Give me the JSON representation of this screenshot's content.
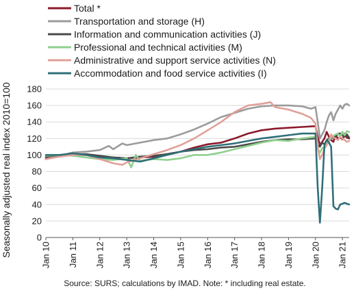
{
  "chart_data": {
    "type": "line",
    "ylabel": "Seasonally adjusted real index 2010=100",
    "xlabel": "",
    "ylim": [
      0,
      180
    ],
    "yticks": [
      0,
      20,
      40,
      60,
      80,
      100,
      120,
      140,
      160,
      180
    ],
    "x_ticks": [
      "Jan 10",
      "Jan 11",
      "Jan 12",
      "Jan 13",
      "Jan 14",
      "Jan 15",
      "Jan 16",
      "Jan 17",
      "Jan 18",
      "Jan 19",
      "Jan 20",
      "Jan 21"
    ],
    "x_range": [
      "Jan 10",
      "Apr 21"
    ],
    "grid": "horizontal",
    "legend_position": "top",
    "note": "Source:  SURS; calculations by IMAD. Note: * including real estate.",
    "series": [
      {
        "name": "Total *",
        "color": "#8b1a2b",
        "points": [
          [
            0,
            96
          ],
          [
            6,
            100
          ],
          [
            12,
            101
          ],
          [
            18,
            100
          ],
          [
            24,
            98
          ],
          [
            30,
            97
          ],
          [
            36,
            96
          ],
          [
            42,
            97
          ],
          [
            48,
            98
          ],
          [
            54,
            101
          ],
          [
            60,
            104
          ],
          [
            66,
            109
          ],
          [
            72,
            113
          ],
          [
            78,
            115
          ],
          [
            84,
            120
          ],
          [
            90,
            126
          ],
          [
            96,
            130
          ],
          [
            102,
            132
          ],
          [
            108,
            133
          ],
          [
            114,
            134
          ],
          [
            120,
            135
          ],
          [
            121,
            122
          ],
          [
            122,
            112
          ],
          [
            123,
            116
          ],
          [
            124,
            120
          ],
          [
            125,
            128
          ],
          [
            126,
            122
          ],
          [
            127,
            118
          ],
          [
            128,
            116
          ],
          [
            129,
            124
          ],
          [
            130,
            120
          ],
          [
            131,
            121
          ],
          [
            132,
            119
          ],
          [
            133,
            126
          ],
          [
            134,
            121
          ],
          [
            135,
            120
          ]
        ]
      },
      {
        "name": "Transportation and storage (H)",
        "color": "#9b9b9b",
        "points": [
          [
            0,
            95
          ],
          [
            6,
            99
          ],
          [
            12,
            103
          ],
          [
            18,
            104
          ],
          [
            24,
            106
          ],
          [
            28,
            111
          ],
          [
            30,
            107
          ],
          [
            34,
            114
          ],
          [
            36,
            112
          ],
          [
            42,
            115
          ],
          [
            48,
            118
          ],
          [
            54,
            120
          ],
          [
            60,
            125
          ],
          [
            66,
            131
          ],
          [
            72,
            138
          ],
          [
            78,
            146
          ],
          [
            84,
            151
          ],
          [
            90,
            156
          ],
          [
            96,
            159
          ],
          [
            102,
            160
          ],
          [
            108,
            160
          ],
          [
            114,
            159
          ],
          [
            118,
            156
          ],
          [
            120,
            158
          ],
          [
            121,
            140
          ],
          [
            122,
            120
          ],
          [
            123,
            125
          ],
          [
            124,
            130
          ],
          [
            125,
            140
          ],
          [
            126,
            148
          ],
          [
            127,
            152
          ],
          [
            128,
            142
          ],
          [
            129,
            150
          ],
          [
            130,
            155
          ],
          [
            131,
            160
          ],
          [
            132,
            156
          ],
          [
            133,
            161
          ],
          [
            134,
            162
          ],
          [
            135,
            160
          ]
        ]
      },
      {
        "name": "Information and communication activities (J)",
        "color": "#4a4a4a",
        "points": [
          [
            0,
            98
          ],
          [
            6,
            100
          ],
          [
            12,
            101
          ],
          [
            18,
            101
          ],
          [
            24,
            99
          ],
          [
            30,
            97
          ],
          [
            36,
            96
          ],
          [
            42,
            98
          ],
          [
            48,
            99
          ],
          [
            54,
            101
          ],
          [
            60,
            104
          ],
          [
            66,
            106
          ],
          [
            72,
            107
          ],
          [
            78,
            109
          ],
          [
            84,
            110
          ],
          [
            90,
            113
          ],
          [
            96,
            116
          ],
          [
            102,
            118
          ],
          [
            108,
            119
          ],
          [
            114,
            119
          ],
          [
            120,
            120
          ],
          [
            121,
            112
          ],
          [
            122,
            110
          ],
          [
            123,
            115
          ],
          [
            124,
            113
          ],
          [
            125,
            118
          ],
          [
            126,
            120
          ],
          [
            127,
            122
          ],
          [
            128,
            120
          ],
          [
            129,
            123
          ],
          [
            130,
            126
          ],
          [
            131,
            126
          ],
          [
            132,
            124
          ],
          [
            133,
            122
          ],
          [
            134,
            125
          ],
          [
            135,
            121
          ]
        ]
      },
      {
        "name": "Professional and technical activities (M)",
        "color": "#8fd18f",
        "points": [
          [
            0,
            99
          ],
          [
            6,
            100
          ],
          [
            12,
            99
          ],
          [
            18,
            97
          ],
          [
            24,
            95
          ],
          [
            30,
            94
          ],
          [
            36,
            96
          ],
          [
            38,
            85
          ],
          [
            40,
            100
          ],
          [
            42,
            93
          ],
          [
            48,
            95
          ],
          [
            54,
            94
          ],
          [
            60,
            96
          ],
          [
            66,
            100
          ],
          [
            72,
            100
          ],
          [
            78,
            103
          ],
          [
            84,
            107
          ],
          [
            90,
            111
          ],
          [
            96,
            115
          ],
          [
            102,
            118
          ],
          [
            108,
            117
          ],
          [
            114,
            120
          ],
          [
            120,
            122
          ],
          [
            121,
            108
          ],
          [
            122,
            103
          ],
          [
            123,
            108
          ],
          [
            124,
            110
          ],
          [
            125,
            113
          ],
          [
            126,
            116
          ],
          [
            127,
            122
          ],
          [
            128,
            123
          ],
          [
            129,
            125
          ],
          [
            130,
            126
          ],
          [
            131,
            122
          ],
          [
            132,
            128
          ],
          [
            133,
            124
          ],
          [
            134,
            129
          ],
          [
            135,
            128
          ]
        ]
      },
      {
        "name": "Administrative and support service activities (N)",
        "color": "#e0a097",
        "points": [
          [
            0,
            95
          ],
          [
            6,
            98
          ],
          [
            12,
            100
          ],
          [
            18,
            100
          ],
          [
            24,
            95
          ],
          [
            30,
            90
          ],
          [
            34,
            88
          ],
          [
            36,
            91
          ],
          [
            42,
            96
          ],
          [
            48,
            101
          ],
          [
            54,
            106
          ],
          [
            60,
            112
          ],
          [
            66,
            120
          ],
          [
            72,
            130
          ],
          [
            78,
            140
          ],
          [
            84,
            152
          ],
          [
            90,
            160
          ],
          [
            96,
            162
          ],
          [
            100,
            164
          ],
          [
            102,
            158
          ],
          [
            108,
            155
          ],
          [
            114,
            150
          ],
          [
            118,
            145
          ],
          [
            120,
            138
          ],
          [
            121,
            110
          ],
          [
            122,
            95
          ],
          [
            123,
            100
          ],
          [
            124,
            108
          ],
          [
            125,
            112
          ],
          [
            126,
            118
          ],
          [
            127,
            125
          ],
          [
            128,
            121
          ],
          [
            129,
            120
          ],
          [
            130,
            118
          ],
          [
            131,
            122
          ],
          [
            132,
            120
          ],
          [
            133,
            118
          ],
          [
            134,
            116
          ],
          [
            135,
            117
          ]
        ]
      },
      {
        "name": "Accommodation and food service activities (I)",
        "color": "#2f6f78",
        "points": [
          [
            0,
            100
          ],
          [
            6,
            100
          ],
          [
            12,
            102
          ],
          [
            18,
            100
          ],
          [
            24,
            97
          ],
          [
            30,
            96
          ],
          [
            36,
            94
          ],
          [
            42,
            92
          ],
          [
            48,
            96
          ],
          [
            54,
            100
          ],
          [
            60,
            104
          ],
          [
            66,
            107
          ],
          [
            72,
            110
          ],
          [
            78,
            112
          ],
          [
            84,
            114
          ],
          [
            90,
            117
          ],
          [
            96,
            120
          ],
          [
            102,
            122
          ],
          [
            108,
            124
          ],
          [
            114,
            126
          ],
          [
            120,
            126
          ],
          [
            121,
            60
          ],
          [
            122,
            18
          ],
          [
            123,
            60
          ],
          [
            124,
            112
          ],
          [
            125,
            118
          ],
          [
            126,
            115
          ],
          [
            127,
            110
          ],
          [
            128,
            38
          ],
          [
            129,
            35
          ],
          [
            130,
            34
          ],
          [
            131,
            40
          ],
          [
            132,
            41
          ],
          [
            133,
            42
          ],
          [
            134,
            41
          ],
          [
            135,
            40
          ]
        ]
      }
    ]
  }
}
